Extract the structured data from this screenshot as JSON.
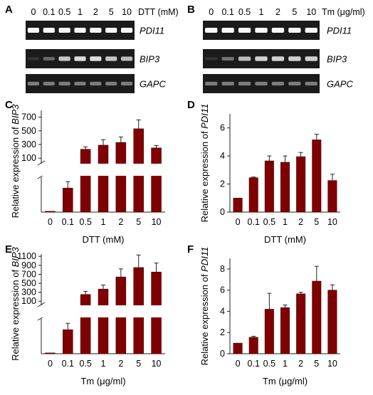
{
  "colors": {
    "bar": "#7f0000",
    "bar_stroke": "#4a0000",
    "axis": "#222222",
    "gel_bg": "#1b1b1b"
  },
  "gels": [
    {
      "panel": "A",
      "lanes": [
        "0",
        "0.1",
        "0.5",
        "1",
        "2",
        "5",
        "10"
      ],
      "unit": "DTT (mM)",
      "rows": [
        {
          "label": "PDI11",
          "intensity": [
            1,
            1,
            1,
            1,
            1,
            1,
            1
          ]
        },
        {
          "label": "BIP3",
          "intensity": [
            0.05,
            0.3,
            0.75,
            0.85,
            0.85,
            0.75,
            0.7
          ]
        },
        {
          "label": "GAPC",
          "intensity": [
            0.4,
            0.4,
            0.4,
            0.4,
            0.4,
            0.4,
            0.4
          ]
        }
      ]
    },
    {
      "panel": "B",
      "lanes": [
        "0",
        "0.1",
        "0.5",
        "1",
        "2",
        "5",
        "10"
      ],
      "unit": "Tm (μg/ml)",
      "rows": [
        {
          "label": "PDI11",
          "intensity": [
            1,
            1,
            1,
            1,
            1,
            1,
            1
          ]
        },
        {
          "label": "BIP3",
          "intensity": [
            0.05,
            0.35,
            0.7,
            0.8,
            0.8,
            0.8,
            0.8
          ]
        },
        {
          "label": "GAPC",
          "intensity": [
            0.4,
            0.4,
            0.4,
            0.4,
            0.4,
            0.4,
            0.4
          ]
        }
      ]
    }
  ],
  "chart_data": [
    {
      "panel": "C",
      "type": "bar",
      "categories": [
        "0",
        "0.1",
        "0.5",
        "1",
        "2",
        "5",
        "10"
      ],
      "values": [
        1,
        30,
        230,
        290,
        330,
        530,
        250
      ],
      "errors": [
        0,
        8,
        35,
        80,
        80,
        130,
        35
      ],
      "ylabel_prefix": "Relative expression of ",
      "ylabel_gene": "BIP3",
      "xlabel": "DTT (mM)",
      "yticks": [
        "100",
        "300",
        "500",
        "700"
      ],
      "y_broken": true,
      "ylim_upper": [
        0,
        800
      ]
    },
    {
      "panel": "D",
      "type": "bar",
      "categories": [
        "0",
        "0.1",
        "0.5",
        "1",
        "2",
        "5",
        "10"
      ],
      "values": [
        1,
        2.45,
        3.65,
        3.55,
        3.95,
        5.15,
        2.25
      ],
      "errors": [
        0,
        0.05,
        0.35,
        0.45,
        0.3,
        0.4,
        0.45
      ],
      "ylabel_prefix": "Relative expression of ",
      "ylabel_gene": "PDI11",
      "xlabel": "DTT (mM)",
      "yticks": [
        "0",
        "2",
        "4",
        "6"
      ],
      "ylim": [
        0,
        7
      ]
    },
    {
      "panel": "E",
      "type": "bar",
      "categories": [
        "0",
        "0.1",
        "0.5",
        "1",
        "2",
        "5",
        "10"
      ],
      "values": [
        1,
        30,
        250,
        370,
        640,
        850,
        750
      ],
      "errors": [
        0,
        8,
        70,
        90,
        180,
        280,
        200
      ],
      "ylabel_prefix": "Relative expression of ",
      "ylabel_gene": "BIP3",
      "xlabel": "Tm (μg/ml)",
      "yticks": [
        "100",
        "300",
        "500",
        "700",
        "900",
        "1100"
      ],
      "y_broken": true,
      "ylim_upper": [
        0,
        1150
      ]
    },
    {
      "panel": "F",
      "type": "bar",
      "categories": [
        "0",
        "0.1",
        "0.5",
        "1",
        "2",
        "5",
        "10"
      ],
      "values": [
        1,
        1.55,
        4.2,
        4.35,
        5.65,
        6.85,
        6.0
      ],
      "errors": [
        0,
        0.1,
        1.5,
        0.25,
        0.15,
        1.4,
        0.5
      ],
      "ylabel_prefix": "Relative expression of ",
      "ylabel_gene": "PDI11",
      "xlabel": "Tm (μg/ml)",
      "yticks": [
        "0",
        "2",
        "4",
        "6",
        "8"
      ],
      "ylim": [
        0,
        9
      ]
    }
  ]
}
